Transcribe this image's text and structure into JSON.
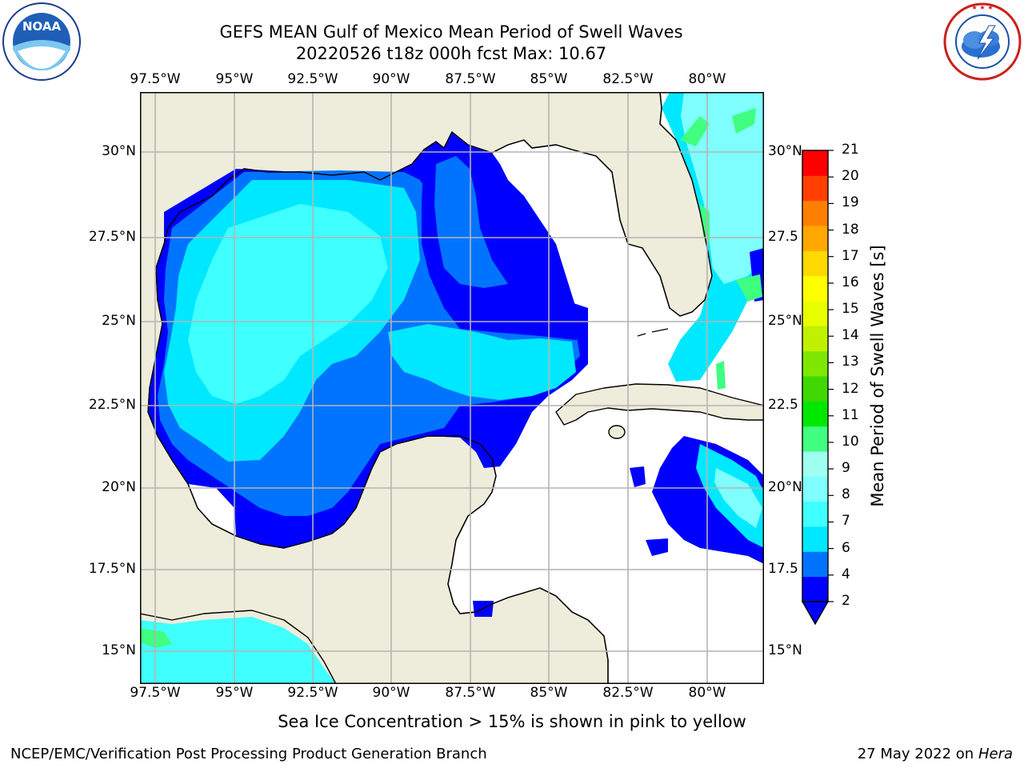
{
  "header": {
    "title_line1": "GEFS MEAN Gulf of Mexico Mean Period of Swell Waves",
    "title_line2": "20220526 t18z 000h fcst   Max: 10.67"
  },
  "logos": {
    "noaa_text": "NOAA",
    "noaa_ring": "NATIONAL OCEANIC AND ATMOSPHERIC ADMINISTRATION · U.S. DEPARTMENT OF COMMERCE",
    "nws_ring": "NATIONAL WEATHER SERVICE"
  },
  "axes": {
    "lon_top": [
      "97.5°W",
      "95°W",
      "92.5°W",
      "90°W",
      "87.5°W",
      "85°W",
      "82.5°W",
      "80°W"
    ],
    "lon_bottom": [
      "97.5°W",
      "95°W",
      "92.5°W",
      "90°W",
      "87.5°W",
      "85°W",
      "82.5°W",
      "80°W"
    ],
    "lat_left": [
      "30°N",
      "27.5°N",
      "25°N",
      "22.5°N",
      "20°N",
      "17.5°N",
      "15°N"
    ],
    "lat_right": [
      "30°N",
      "27.5",
      "25°N",
      "22.5",
      "20°N",
      "17.5",
      "15°N"
    ]
  },
  "colorbar": {
    "label": "Mean Period of Swell Waves [s]",
    "ticks": [
      "2",
      "4",
      "6",
      "7",
      "8",
      "9",
      "10",
      "11",
      "12",
      "13",
      "14",
      "15",
      "16",
      "17",
      "18",
      "19",
      "20",
      "21"
    ],
    "colors": [
      "#0000ff",
      "#0074ff",
      "#00e8ff",
      "#40ffff",
      "#7fffff",
      "#9ffff0",
      "#40ff80",
      "#00e800",
      "#40d800",
      "#80e800",
      "#c0f000",
      "#e8ff00",
      "#ffff00",
      "#ffd800",
      "#ffa800",
      "#ff8000",
      "#ff4000",
      "#ff0000"
    ]
  },
  "map_colors": {
    "land": "#eeecda",
    "ocean_nodata": "#ffffff",
    "coast": "#000000",
    "grid": "#b4b4b4"
  },
  "footer": {
    "note": "Sea Ice Concentration > 15% is shown in pink to yellow",
    "credit": "NCEP/EMC/Verification Post Processing Product Generation Branch",
    "date": "27 May 2022 on",
    "host": "Hera"
  }
}
